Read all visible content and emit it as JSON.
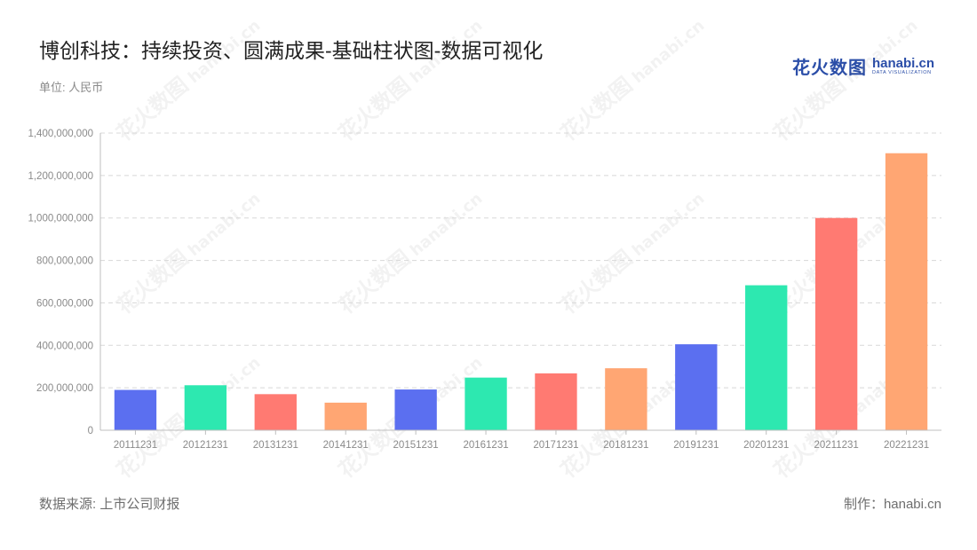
{
  "header": {
    "title": "博创科技：持续投资、圆满成果-基础柱状图-数据可视化",
    "unit": "单位: 人民币"
  },
  "logo": {
    "cn": "花火数图",
    "en": "hanabi.cn",
    "en_sub": "DATA VISUALIZATION",
    "color": "#2b4ea8"
  },
  "watermark": {
    "cn": "花火数图",
    "en": "hanabi.cn"
  },
  "footer": {
    "source": "数据来源: 上市公司财报",
    "maker": "制作：hanabi.cn"
  },
  "chart_data": {
    "type": "bar",
    "categories": [
      "20111231",
      "20121231",
      "20131231",
      "20141231",
      "20151231",
      "20161231",
      "20171231",
      "20181231",
      "20191231",
      "20201231",
      "20211231",
      "20221231"
    ],
    "values": [
      190000000,
      212000000,
      170000000,
      130000000,
      192000000,
      248000000,
      268000000,
      292000000,
      405000000,
      683000000,
      1000000000,
      1305000000
    ],
    "colors": [
      "#5b6ff0",
      "#2de8b0",
      "#ff7a72",
      "#ffa673",
      "#5b6ff0",
      "#2de8b0",
      "#ff7a72",
      "#ffa673",
      "#5b6ff0",
      "#2de8b0",
      "#ff7a72",
      "#ffa673"
    ],
    "yticks": [
      "0",
      "200,000,000",
      "400,000,000",
      "600,000,000",
      "800,000,000",
      "1,000,000,000",
      "1,200,000,000",
      "1,400,000,000"
    ],
    "ylim": [
      0,
      1400000000
    ],
    "grid": true,
    "xlabel": "",
    "ylabel": ""
  }
}
